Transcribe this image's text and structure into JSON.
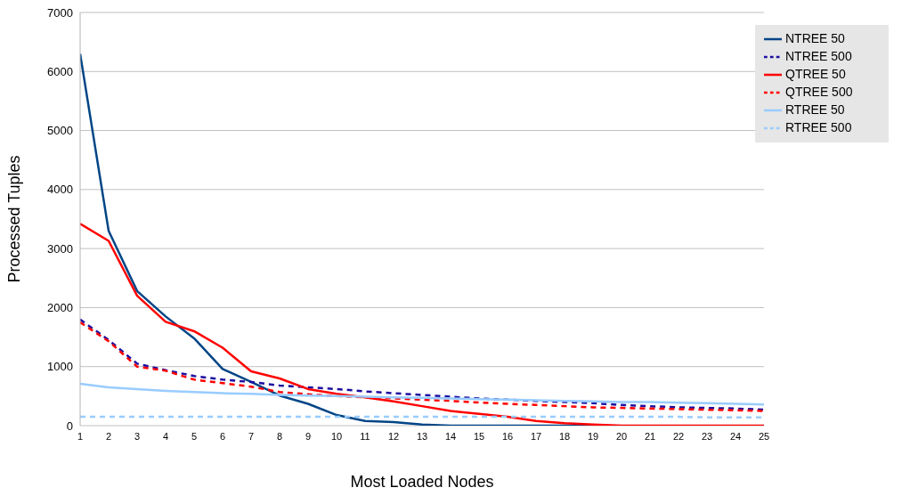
{
  "chart_data": {
    "type": "line",
    "xlabel": "Most Loaded Nodes",
    "ylabel": "Processed Tuples",
    "x": [
      1,
      2,
      3,
      4,
      5,
      6,
      7,
      8,
      9,
      10,
      11,
      12,
      13,
      14,
      15,
      16,
      17,
      18,
      19,
      20,
      21,
      22,
      23,
      24,
      25
    ],
    "xlim": [
      1,
      25
    ],
    "xticks": [
      1,
      2,
      3,
      4,
      5,
      6,
      7,
      8,
      9,
      10,
      11,
      12,
      13,
      14,
      15,
      16,
      17,
      18,
      19,
      20,
      21,
      22,
      23,
      24,
      25
    ],
    "ylim": [
      0,
      7000
    ],
    "yticks": [
      0,
      1000,
      2000,
      3000,
      4000,
      5000,
      6000,
      7000
    ],
    "grid": "y",
    "legend": "top right",
    "marker": "none",
    "series": [
      {
        "name": "NTREE 50",
        "color": "#004586",
        "line_style": "solid",
        "values": [
          6300,
          3300,
          2280,
          1850,
          1480,
          960,
          740,
          510,
          370,
          180,
          80,
          60,
          20,
          0,
          0,
          0,
          0,
          0,
          0,
          null,
          null,
          null,
          null,
          null,
          null
        ]
      },
      {
        "name": "NTREE 500",
        "color": "#1c0ea0",
        "line_style": "dashed",
        "values": [
          1800,
          1450,
          1050,
          940,
          840,
          780,
          740,
          680,
          650,
          620,
          580,
          550,
          520,
          490,
          460,
          440,
          420,
          400,
          380,
          350,
          330,
          310,
          300,
          290,
          270
        ]
      },
      {
        "name": "QTREE 50",
        "color": "#ff0000",
        "line_style": "solid",
        "values": [
          3420,
          3130,
          2200,
          1760,
          1600,
          1320,
          920,
          800,
          620,
          540,
          480,
          410,
          330,
          250,
          200,
          150,
          80,
          40,
          20,
          0,
          0,
          0,
          0,
          0,
          0
        ]
      },
      {
        "name": "QTREE 500",
        "color": "#ff0000",
        "line_style": "dashed",
        "values": [
          1750,
          1430,
          1000,
          930,
          780,
          720,
          660,
          570,
          530,
          500,
          480,
          460,
          440,
          420,
          390,
          370,
          350,
          330,
          310,
          300,
          290,
          280,
          270,
          260,
          250
        ]
      },
      {
        "name": "RTREE 50",
        "color": "#99ccff",
        "line_style": "solid",
        "values": [
          710,
          650,
          620,
          590,
          570,
          550,
          540,
          520,
          510,
          500,
          490,
          480,
          470,
          460,
          450,
          440,
          430,
          420,
          410,
          400,
          400,
          390,
          380,
          370,
          360
        ]
      },
      {
        "name": "RTREE 500",
        "color": "#99ccff",
        "line_style": "dashed",
        "values": [
          150,
          150,
          150,
          150,
          150,
          150,
          150,
          150,
          150,
          150,
          150,
          150,
          150,
          150,
          150,
          150,
          150,
          150,
          150,
          150,
          150,
          150,
          140,
          140,
          140
        ]
      }
    ]
  }
}
